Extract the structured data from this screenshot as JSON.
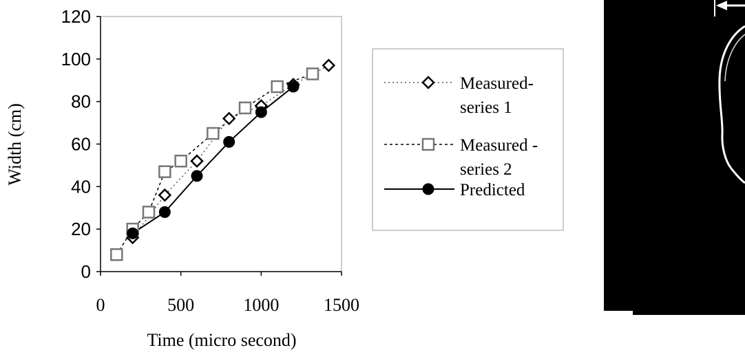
{
  "chart_data": {
    "type": "scatter",
    "title": "",
    "xlabel": "Time (micro second)",
    "ylabel": "Width (cm)",
    "xlim": [
      0,
      1500
    ],
    "ylim": [
      0,
      120
    ],
    "x_ticks": [
      "0",
      "500",
      "1000",
      "1500"
    ],
    "y_ticks": [
      "0",
      "20",
      "40",
      "60",
      "80",
      "100",
      "120"
    ],
    "grid": false,
    "legend_position": "right",
    "series": [
      {
        "name": "Measured-\nseries 1",
        "marker": "diamond",
        "line": "dotted",
        "x": [
          200,
          400,
          600,
          800,
          1000,
          1200,
          1420
        ],
        "y": [
          16,
          36,
          52,
          72,
          78,
          88,
          97
        ]
      },
      {
        "name": "Measured -\nseries 2",
        "marker": "square",
        "line": "dashed",
        "x": [
          100,
          200,
          300,
          400,
          500,
          700,
          900,
          1100,
          1320
        ],
        "y": [
          8,
          20,
          28,
          47,
          52,
          65,
          77,
          87,
          93
        ]
      },
      {
        "name": "Predicted",
        "marker": "circle",
        "line": "solid",
        "x": [
          200,
          400,
          600,
          800,
          1000,
          1200
        ],
        "y": [
          18,
          28,
          45,
          61,
          75,
          87
        ]
      }
    ]
  },
  "colors": {
    "axis": "#000000",
    "frame": "#9a9a9a",
    "series1": "#000000",
    "series2": "#777777",
    "predicted": "#000000",
    "photo_background": "#000000",
    "photo_outline": "#ffffff"
  },
  "photo": {
    "icon": "flame-outline-photo"
  }
}
